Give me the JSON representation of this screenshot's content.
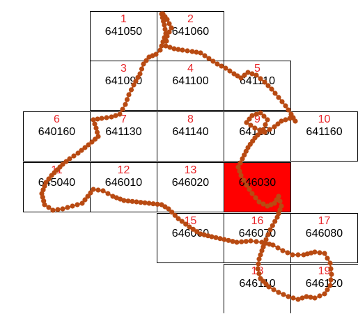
{
  "map": {
    "highlight_color": "#ff0000",
    "track_color": "#b84a12",
    "cells": [
      {
        "num": "1",
        "code": "641050",
        "highlighted": false
      },
      {
        "num": "2",
        "code": "641060",
        "highlighted": false
      },
      {
        "num": "3",
        "code": "641090",
        "highlighted": false
      },
      {
        "num": "4",
        "code": "641100",
        "highlighted": false
      },
      {
        "num": "5",
        "code": "641110",
        "highlighted": false
      },
      {
        "num": "6",
        "code": "640160",
        "highlighted": false
      },
      {
        "num": "7",
        "code": "641130",
        "highlighted": false
      },
      {
        "num": "8",
        "code": "641140",
        "highlighted": false
      },
      {
        "num": "9",
        "code": "641150",
        "highlighted": false
      },
      {
        "num": "10",
        "code": "641160",
        "highlighted": false
      },
      {
        "num": "11",
        "code": "645040",
        "highlighted": false
      },
      {
        "num": "12",
        "code": "646010",
        "highlighted": false
      },
      {
        "num": "13",
        "code": "646020",
        "highlighted": false
      },
      {
        "num": "",
        "code": "646030",
        "highlighted": true
      },
      {
        "num": "15",
        "code": "646060",
        "highlighted": false
      },
      {
        "num": "16",
        "code": "646070",
        "highlighted": false
      },
      {
        "num": "17",
        "code": "646080",
        "highlighted": false
      },
      {
        "num": "18",
        "code": "646110",
        "highlighted": false
      },
      {
        "num": "19",
        "code": "646120",
        "highlighted": false
      }
    ]
  }
}
